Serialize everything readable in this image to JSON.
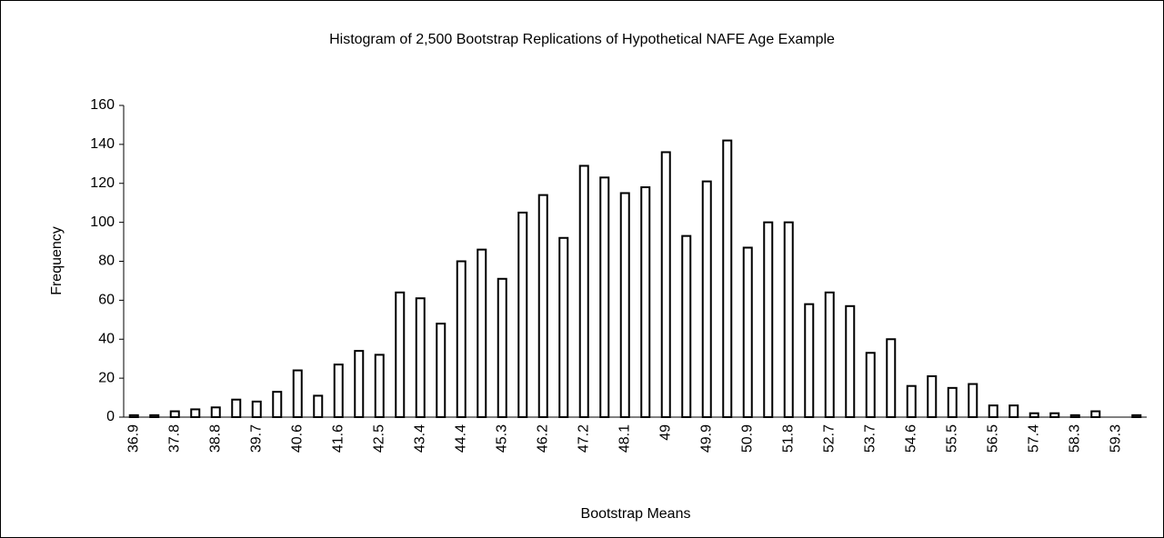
{
  "chart_data": {
    "type": "bar",
    "title": "Histogram of 2,500 Bootstrap Replications of Hypothetical NAFE Age Example",
    "x_label": "Bootstrap Means",
    "y_label": "Frequency",
    "categories": [
      "36.9",
      null,
      "37.8",
      null,
      "38.8",
      null,
      "39.7",
      null,
      "40.6",
      null,
      "41.6",
      null,
      "42.5",
      null,
      "43.4",
      null,
      "44.4",
      null,
      "45.3",
      null,
      "46.2",
      null,
      "47.2",
      null,
      "48.1",
      null,
      "49",
      null,
      "49.9",
      null,
      "50.9",
      null,
      "51.8",
      null,
      "52.7",
      null,
      "53.7",
      null,
      "54.6",
      null,
      "55.5",
      null,
      "56.5",
      null,
      "57.4",
      null,
      "58.3",
      null,
      "59.3",
      null
    ],
    "values": [
      1,
      1,
      3,
      4,
      5,
      9,
      8,
      13,
      24,
      11,
      27,
      34,
      32,
      64,
      61,
      48,
      80,
      86,
      71,
      105,
      114,
      92,
      129,
      123,
      115,
      118,
      136,
      93,
      121,
      142,
      87,
      100,
      100,
      58,
      64,
      57,
      33,
      40,
      16,
      21,
      15,
      17,
      6,
      6,
      2,
      2,
      1,
      3,
      0,
      1
    ],
    "color": "#ffffff",
    "ylim": [
      0,
      160
    ],
    "yticks": [
      0,
      20,
      40,
      60,
      80,
      100,
      120,
      140,
      160
    ]
  }
}
